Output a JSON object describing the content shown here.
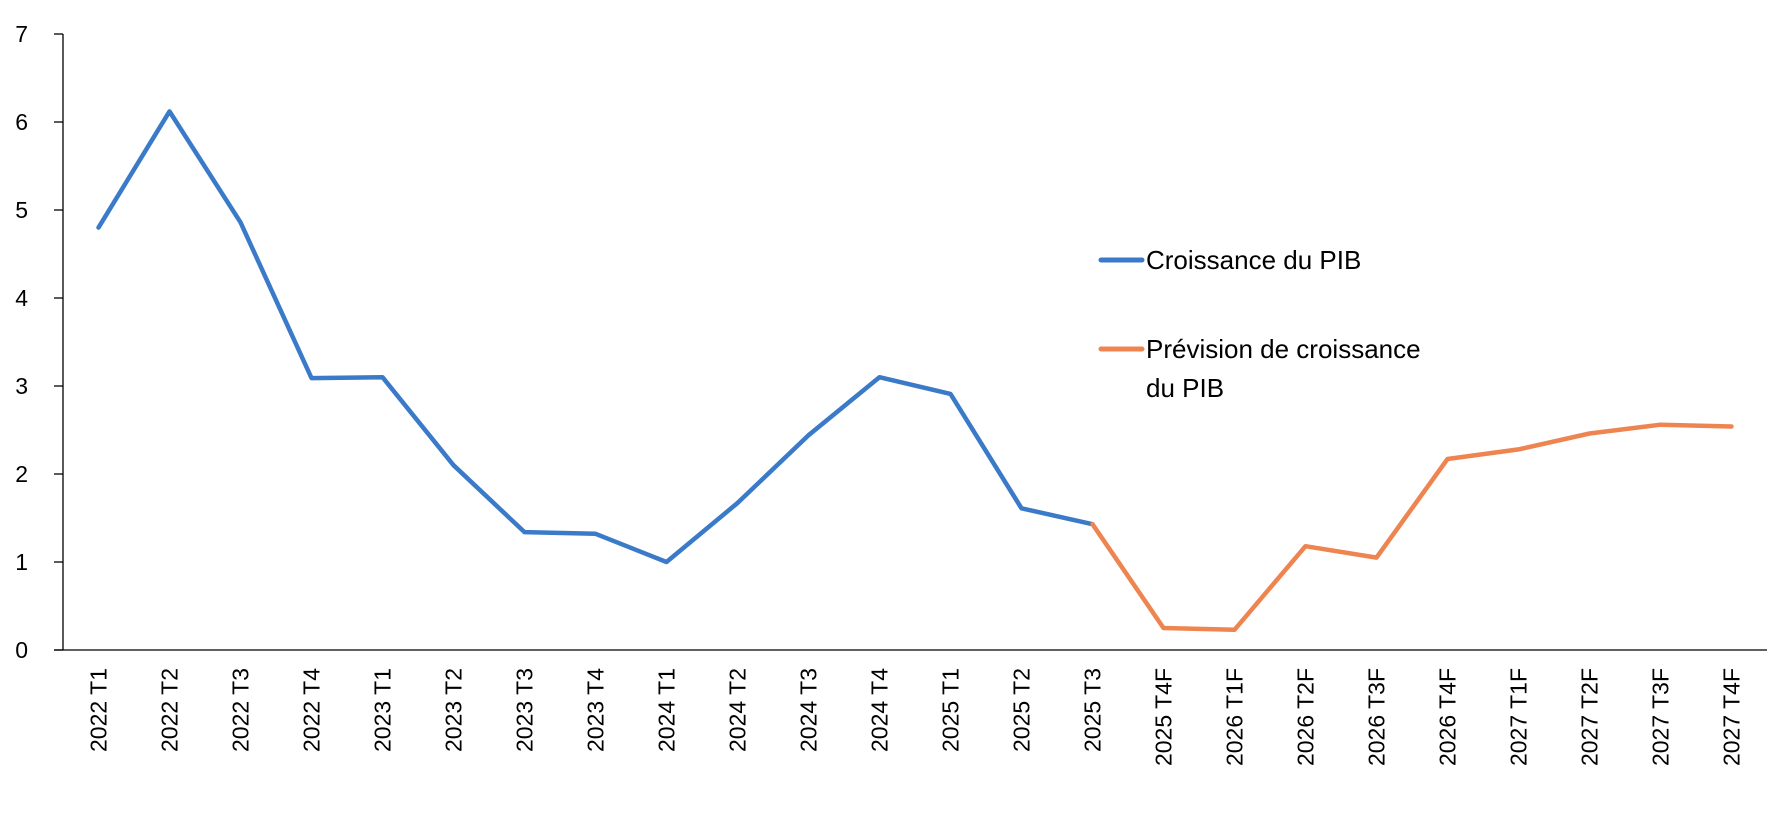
{
  "chart_data": {
    "type": "line",
    "title": "",
    "xlabel": "",
    "ylabel": "",
    "ylim": [
      0,
      7
    ],
    "yticks": [
      "0",
      "1",
      "2",
      "3",
      "4",
      "5",
      "6",
      "7"
    ],
    "grid": false,
    "legend_position": "right",
    "categories": [
      "2022 T1",
      "2022 T2",
      "2022 T3",
      "2022 T4",
      "2023 T1",
      "2023 T2",
      "2023 T3",
      "2023 T4",
      "2024 T1",
      "2024 T2",
      "2024 T3",
      "2024 T4",
      "2025 T1",
      "2025 T2",
      "2025 T3",
      "2025 T4F",
      "2026 T1F",
      "2026 T2F",
      "2026 T3F",
      "2026 T4F",
      "2027 T1F",
      "2027 T2F",
      "2027 T3F",
      "2027 T4F"
    ],
    "series": [
      {
        "name": "Croissance du PIB",
        "color": "#3a7ac8",
        "values": [
          4.8,
          6.12,
          4.86,
          3.09,
          3.1,
          2.1,
          1.34,
          1.32,
          1.0,
          1.67,
          2.44,
          3.1,
          2.91,
          1.61,
          1.43,
          null,
          null,
          null,
          null,
          null,
          null,
          null,
          null,
          null
        ]
      },
      {
        "name": "Prévision de croissance du PIB",
        "name_lines": [
          "Prévision de croissance",
          "du PIB"
        ],
        "color": "#ee8551",
        "values": [
          null,
          null,
          null,
          null,
          null,
          null,
          null,
          null,
          null,
          null,
          null,
          null,
          null,
          null,
          1.43,
          0.25,
          0.23,
          1.18,
          1.05,
          2.17,
          2.28,
          2.46,
          2.56,
          2.54
        ]
      }
    ]
  }
}
